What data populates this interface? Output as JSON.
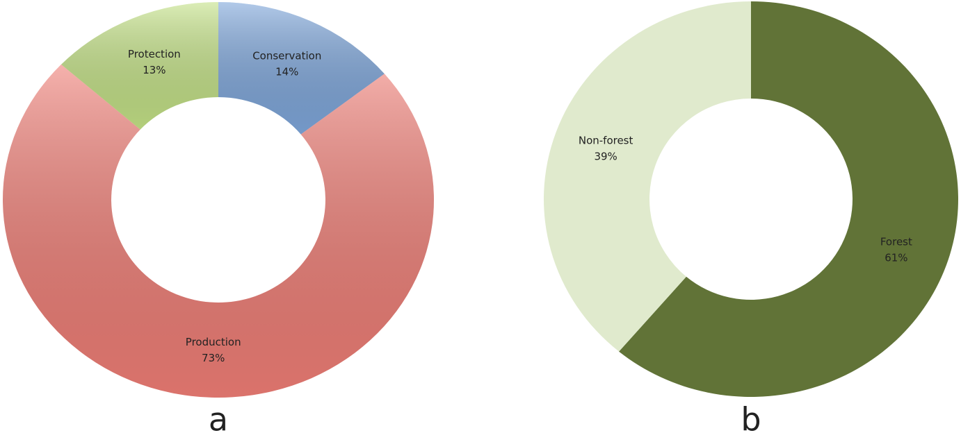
{
  "chart_data": [
    {
      "type": "donut",
      "label": "a",
      "categories": [
        "Conservation",
        "Production",
        "Protection"
      ],
      "values": [
        14,
        73,
        13
      ],
      "value_labels": [
        "14%",
        "73%",
        "13%"
      ],
      "colors": [
        "#7ea6da",
        "#ee7d75",
        "#c3e186"
      ]
    },
    {
      "type": "donut",
      "label": "b",
      "categories": [
        "Forest",
        "Non-forest"
      ],
      "values": [
        61,
        39
      ],
      "value_labels": [
        "61%",
        "39%"
      ],
      "colors": [
        "#617337",
        "#e0eacd"
      ]
    }
  ]
}
